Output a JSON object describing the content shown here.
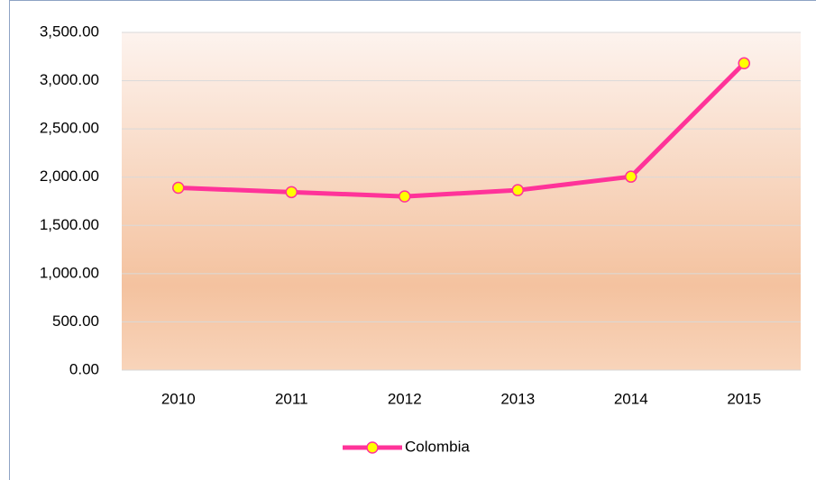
{
  "chart_data": {
    "type": "line",
    "categories": [
      "2010",
      "2011",
      "2012",
      "2013",
      "2014",
      "2015"
    ],
    "series": [
      {
        "name": "Colombia",
        "color": "#ff3399",
        "marker_color": "#ffff00",
        "values": [
          1890,
          1845,
          1800,
          1865,
          2005,
          3180
        ]
      }
    ],
    "ylim": [
      0,
      3500
    ],
    "yticks": [
      {
        "value": 0,
        "label": "0.00"
      },
      {
        "value": 500,
        "label": "500.00"
      },
      {
        "value": 1000,
        "label": "1,000.00"
      },
      {
        "value": 1500,
        "label": "1,500.00"
      },
      {
        "value": 2000,
        "label": "2,000.00"
      },
      {
        "value": 2500,
        "label": "2,500.00"
      },
      {
        "value": 3000,
        "label": "3,000.00"
      },
      {
        "value": 3500,
        "label": "3,500.00"
      }
    ],
    "grid": true,
    "legend": "bottom"
  }
}
